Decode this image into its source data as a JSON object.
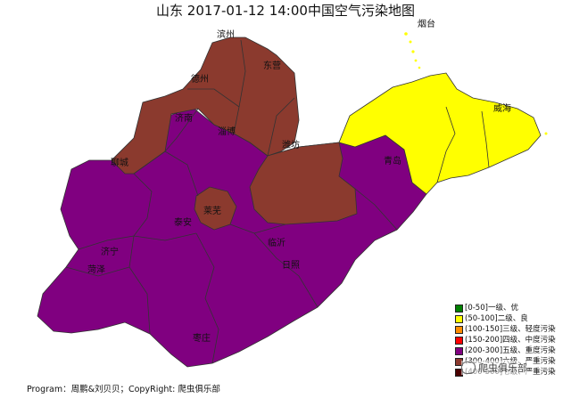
{
  "title": "山东 2017-01-12 14:00中国空气污染地图",
  "colors": {
    "good": "#ffff00",
    "severe": "#800080",
    "serious": "#8b3a2e",
    "border": "#333333"
  },
  "cities": [
    {
      "id": "jinan",
      "label": "济南",
      "level": "serious"
    },
    {
      "id": "dezhou",
      "label": "德州",
      "level": "serious"
    },
    {
      "id": "binzhou",
      "label": "滨州",
      "level": "serious"
    },
    {
      "id": "dongying",
      "label": "东营",
      "level": "serious"
    },
    {
      "id": "liaocheng",
      "label": "聊城",
      "level": "serious"
    },
    {
      "id": "zibo",
      "label": "淄博",
      "level": "severe"
    },
    {
      "id": "weifang",
      "label": "潍坊",
      "level": "serious"
    },
    {
      "id": "yantai",
      "label": "烟台",
      "level": "good"
    },
    {
      "id": "weihai",
      "label": "威海",
      "level": "good"
    },
    {
      "id": "qingdao",
      "label": "青岛",
      "level": "severe"
    },
    {
      "id": "laiwu",
      "label": "莱芜",
      "level": "serious"
    },
    {
      "id": "taian",
      "label": "泰安",
      "level": "severe"
    },
    {
      "id": "jining",
      "label": "济宁",
      "level": "severe"
    },
    {
      "id": "heze",
      "label": "菏泽",
      "level": "severe"
    },
    {
      "id": "linyi",
      "label": "临沂",
      "level": "severe"
    },
    {
      "id": "rizhao",
      "label": "日照",
      "level": "severe"
    },
    {
      "id": "zaozhuang",
      "label": "枣庄",
      "level": "severe"
    }
  ],
  "legend": [
    {
      "range": "[0-50]",
      "label": "一级、优",
      "color": "#008000"
    },
    {
      "range": "(50-100]",
      "label": "二级、良",
      "color": "#ffff00"
    },
    {
      "range": "(100-150]",
      "label": "三级、轻度污染",
      "color": "#ff8c00"
    },
    {
      "range": "(150-200]",
      "label": "四级、中度污染",
      "color": "#ff0000"
    },
    {
      "range": "(200-300]",
      "label": "五级、重度污染",
      "color": "#800080"
    },
    {
      "range": "(300-400]",
      "label": "六级、严重污染",
      "color": "#8b3a2e"
    },
    {
      "range": "(400-500]",
      "label": "七级、严重污染",
      "color": "#4a0000"
    }
  ],
  "footer": "Program：周鹏&刘贝贝；CopyRight: 爬虫俱乐部",
  "watermark": "爬虫俱乐部"
}
